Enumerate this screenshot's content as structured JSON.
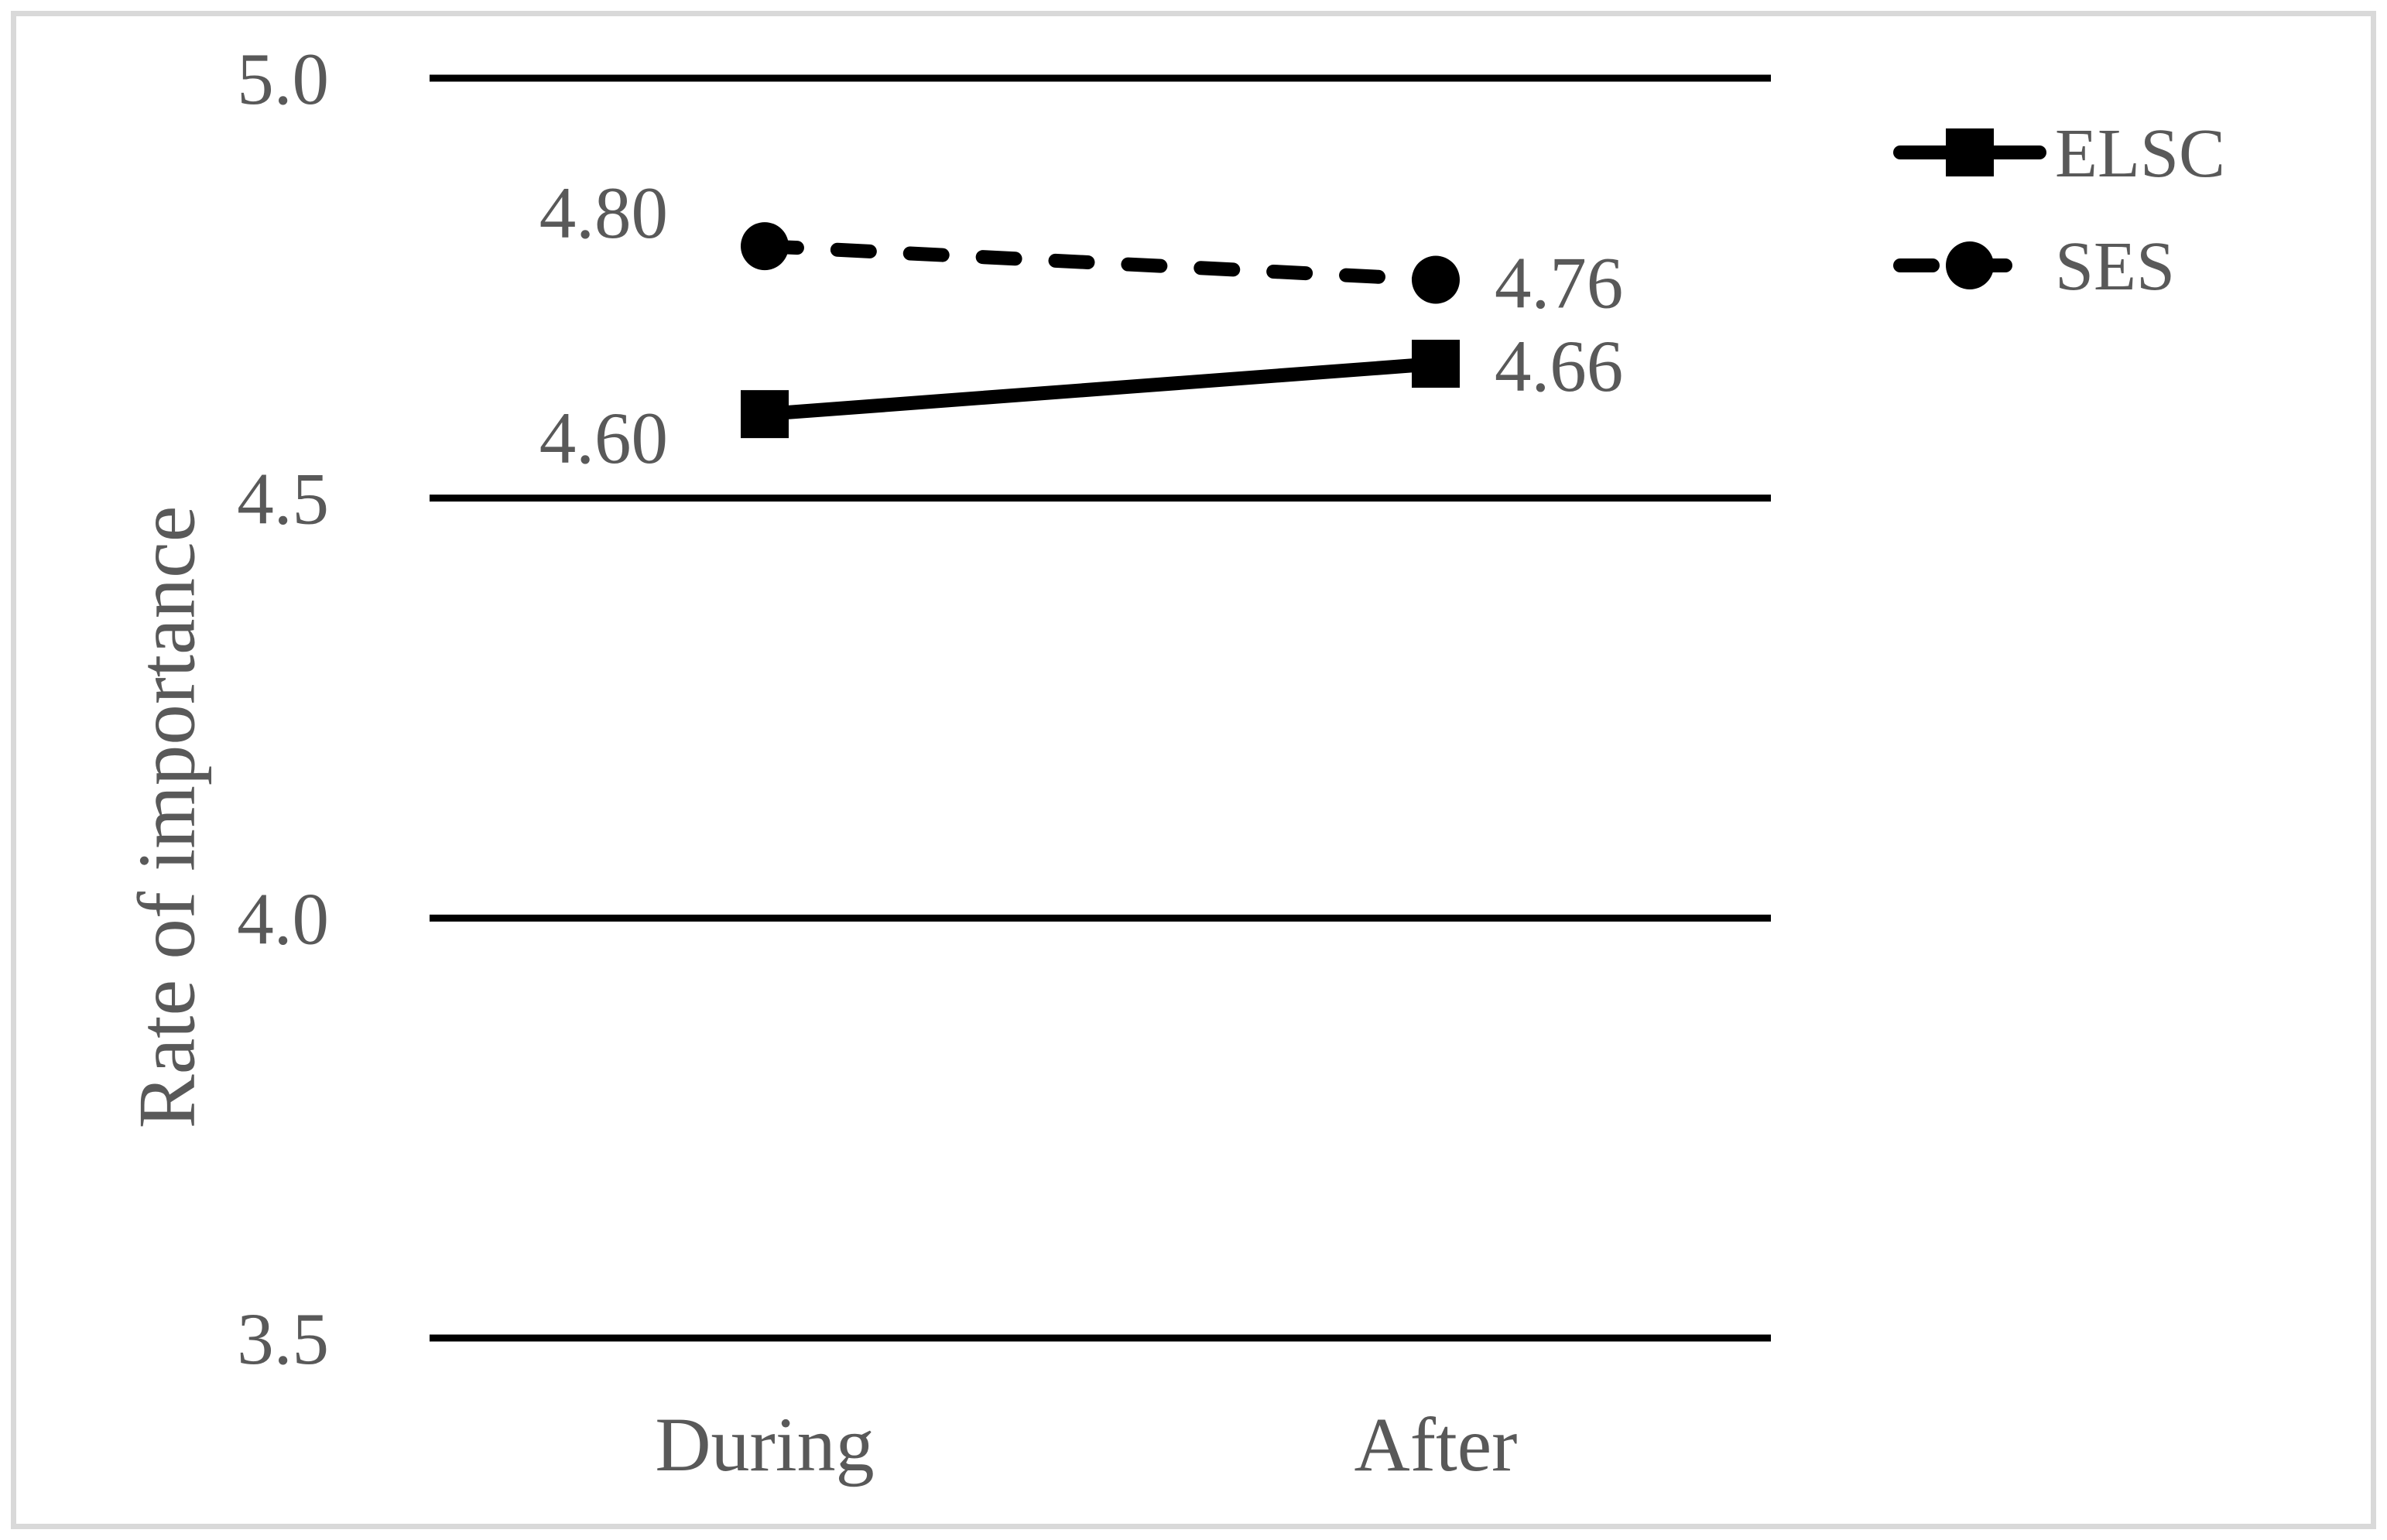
{
  "chart_data": {
    "type": "line",
    "title": "",
    "categories": [
      "During",
      "After"
    ],
    "series": [
      {
        "name": "ELSC",
        "values": [
          4.6,
          4.66
        ],
        "labels": [
          "4.60",
          "4.66"
        ],
        "line_style": "solid",
        "marker": "square"
      },
      {
        "name": "SES",
        "values": [
          4.8,
          4.76
        ],
        "labels": [
          "4.80",
          "4.76"
        ],
        "line_style": "dashed",
        "marker": "circle"
      }
    ],
    "xlabel": "",
    "ylabel": "Rate of importance",
    "ylim": [
      3.5,
      5.0
    ],
    "yticks": [
      5.0,
      4.5,
      4.0,
      3.5
    ],
    "ytick_labels": [
      "5.0",
      "4.5",
      "4.0",
      "3.5"
    ],
    "grid": "horizontal",
    "legend_position": "right",
    "colors": {
      "line": "#000000",
      "text": "#595959",
      "frame": "#d9d9d9",
      "background": "#ffffff"
    }
  }
}
